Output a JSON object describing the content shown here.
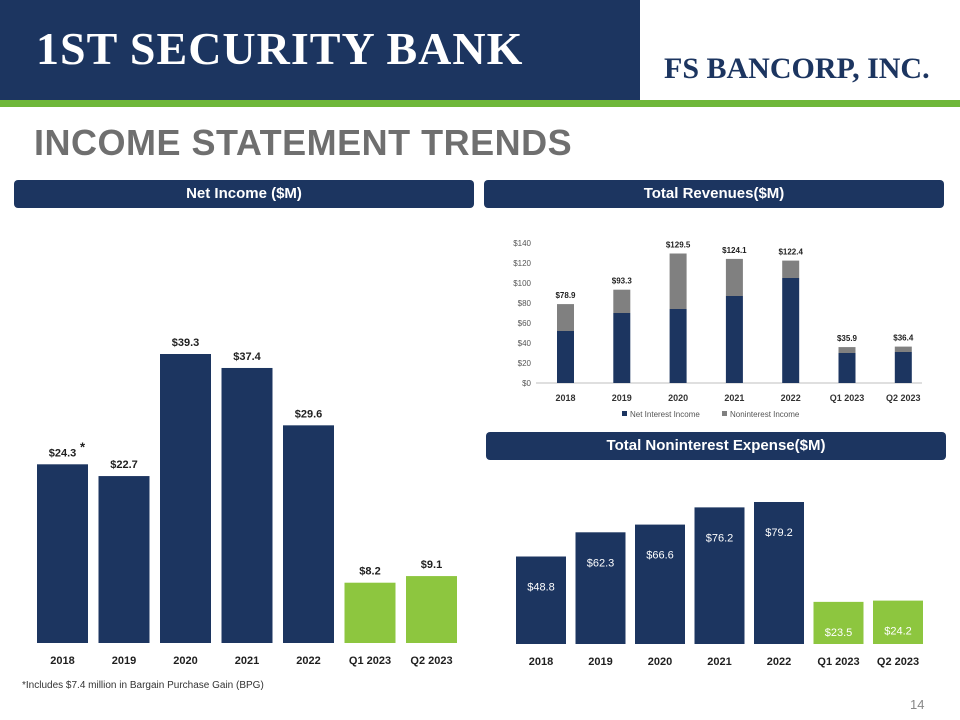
{
  "header": {
    "left_logo": "1ST SECURITY BANK",
    "right_logo": "FS BANCORP, INC."
  },
  "page_title": "INCOME STATEMENT TRENDS",
  "colors": {
    "navy": "#1c3560",
    "green": "#8dc63f",
    "gray": "#808080",
    "accent_green": "#6fb73a"
  },
  "chart_data": [
    {
      "id": "net_income",
      "type": "bar",
      "title": "Net Income ($M)",
      "categories": [
        "2018",
        "2019",
        "2020",
        "2021",
        "2022",
        "Q1 2023",
        "Q2 2023"
      ],
      "values": [
        24.3,
        22.7,
        39.3,
        37.4,
        29.6,
        8.2,
        9.1
      ],
      "labels": [
        "$24.3",
        "$22.7",
        "$39.3",
        "$37.4",
        "$29.6",
        "$8.2",
        "$9.1"
      ],
      "bar_colors": [
        "#1c3560",
        "#1c3560",
        "#1c3560",
        "#1c3560",
        "#1c3560",
        "#8dc63f",
        "#8dc63f"
      ],
      "annotation": "*",
      "annotation_category": "2018"
    },
    {
      "id": "total_revenues",
      "type": "bar",
      "stacked": true,
      "title": "Total Revenues($M)",
      "categories": [
        "2018",
        "2019",
        "2020",
        "2021",
        "2022",
        "Q1 2023",
        "Q2 2023"
      ],
      "series": [
        {
          "name": "Net Interest Income",
          "color": "#1c3560",
          "values": [
            52,
            70,
            74,
            87,
            105,
            30,
            31
          ]
        },
        {
          "name": "Noninterest Income",
          "color": "#808080",
          "values": [
            26.9,
            23.3,
            55.5,
            37.1,
            17.4,
            5.9,
            5.4
          ]
        }
      ],
      "totals": [
        "$78.9",
        "$93.3",
        "$129.5",
        "$124.1",
        "$122.4",
        "$35.9",
        "$36.4"
      ],
      "ylim": [
        0,
        140
      ],
      "yticks": [
        "$0",
        "$20",
        "$40",
        "$60",
        "$80",
        "$100",
        "$120",
        "$140"
      ],
      "legend": "bottom"
    },
    {
      "id": "noninterest_expense",
      "type": "bar",
      "title": "Total Noninterest Expense($M)",
      "categories": [
        "2018",
        "2019",
        "2020",
        "2021",
        "2022",
        "Q1 2023",
        "Q2 2023"
      ],
      "values": [
        48.8,
        62.3,
        66.6,
        76.2,
        79.2,
        23.5,
        24.2
      ],
      "labels": [
        "$48.8",
        "$62.3",
        "$66.6",
        "$76.2",
        "$79.2",
        "$23.5",
        "$24.2"
      ],
      "bar_colors": [
        "#1c3560",
        "#1c3560",
        "#1c3560",
        "#1c3560",
        "#1c3560",
        "#8dc63f",
        "#8dc63f"
      ]
    }
  ],
  "footnote": "*Includes $7.4 million in Bargain Purchase Gain (BPG)",
  "page_number": "14"
}
